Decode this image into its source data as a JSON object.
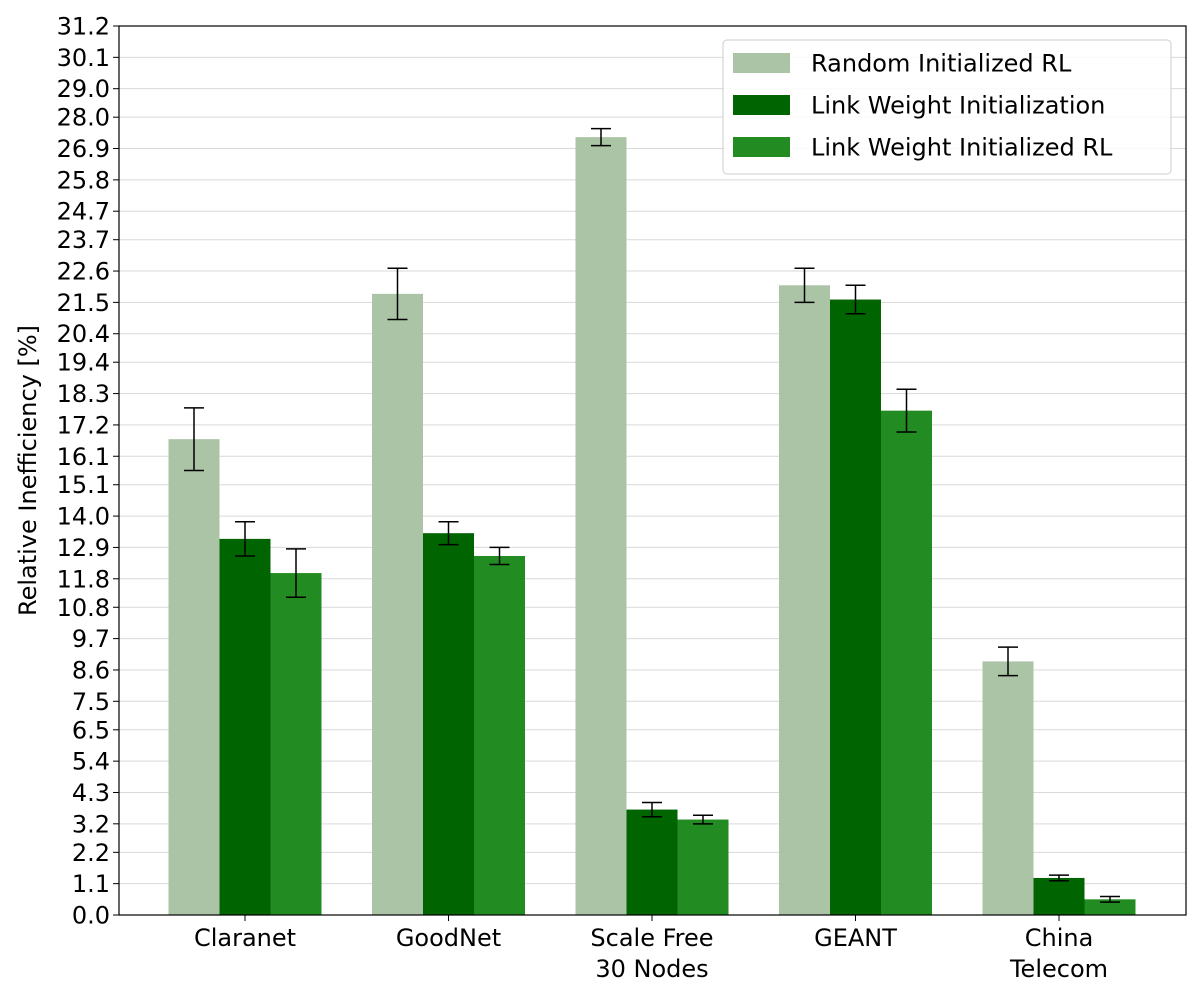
{
  "chart_data": {
    "type": "bar",
    "title": "",
    "xlabel": "",
    "ylabel": "Relative Inefficiency [%]",
    "categories": [
      [
        "Claranet"
      ],
      [
        "GoodNet"
      ],
      [
        "Scale Free",
        "30 Nodes"
      ],
      [
        "GEANT"
      ],
      [
        "China",
        "Telecom"
      ]
    ],
    "ylim": [
      0.0,
      31.2
    ],
    "yticks": [
      "0.0",
      "1.1",
      "2.2",
      "3.2",
      "4.3",
      "5.4",
      "6.5",
      "7.5",
      "8.6",
      "9.7",
      "10.8",
      "11.8",
      "12.9",
      "14.0",
      "15.1",
      "16.1",
      "17.2",
      "18.3",
      "19.4",
      "20.4",
      "21.5",
      "22.6",
      "23.7",
      "24.7",
      "25.8",
      "26.9",
      "28.0",
      "29.0",
      "30.1",
      "31.2"
    ],
    "grid": "horizontal",
    "legend_position": "top-right",
    "series": [
      {
        "name": "Random Initialized RL",
        "color": "#abc4a5",
        "values": [
          16.7,
          21.8,
          27.3,
          22.1,
          8.9
        ],
        "errors": [
          1.1,
          0.9,
          0.3,
          0.6,
          0.5
        ]
      },
      {
        "name": "Link Weight Initialization",
        "color": "#006400",
        "values": [
          13.2,
          13.4,
          3.7,
          21.6,
          1.3
        ],
        "errors": [
          0.6,
          0.4,
          0.25,
          0.5,
          0.1
        ]
      },
      {
        "name": "Link Weight Initialized RL",
        "color": "#228b22",
        "values": [
          12.0,
          12.6,
          3.35,
          17.7,
          0.55
        ],
        "errors": [
          0.85,
          0.3,
          0.15,
          0.75,
          0.1
        ]
      }
    ]
  }
}
